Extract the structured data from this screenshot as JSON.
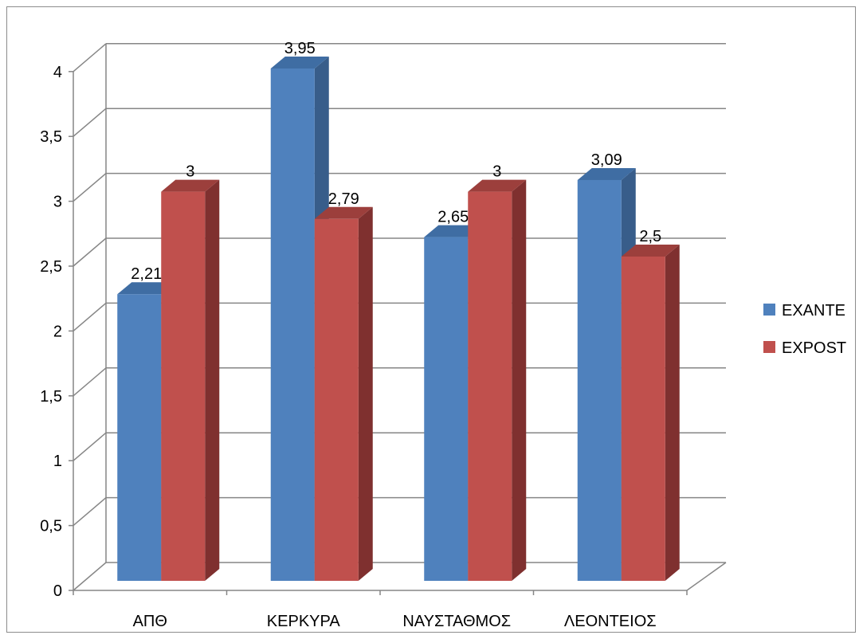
{
  "chart_data": {
    "type": "bar",
    "categories": [
      "ΑΠΘ",
      "ΚΕΡΚΥΡΑ",
      "ΝΑΥΣΤΑΘΜΟΣ",
      "ΛΕΟΝΤΕΙΟΣ"
    ],
    "series": [
      {
        "name": "EXANTE",
        "values": [
          2.21,
          3.95,
          2.65,
          3.09
        ],
        "labels": [
          "2,21",
          "3,95",
          "2,65",
          "3,09"
        ]
      },
      {
        "name": "EXPOST",
        "values": [
          3,
          2.79,
          3,
          2.5
        ],
        "labels": [
          "3",
          "2,79",
          "3",
          "2,5"
        ]
      }
    ],
    "ylim": [
      0,
      4
    ],
    "yticks": [
      0,
      0.5,
      1,
      1.5,
      2,
      2.5,
      3,
      3.5,
      4
    ],
    "ytick_labels": [
      "0",
      "0,5",
      "1",
      "1,5",
      "2",
      "2,5",
      "3",
      "3,5",
      "4"
    ],
    "grid": true,
    "legend_position": "right",
    "three_d": true,
    "colors": {
      "EXANTE": {
        "front": "#4f81bd",
        "side": "#385d8a",
        "top": "#3f6da3"
      },
      "EXPOST": {
        "front": "#c0504d",
        "side": "#7f302f",
        "top": "#9c3f3c"
      },
      "grid": "#868686"
    }
  }
}
